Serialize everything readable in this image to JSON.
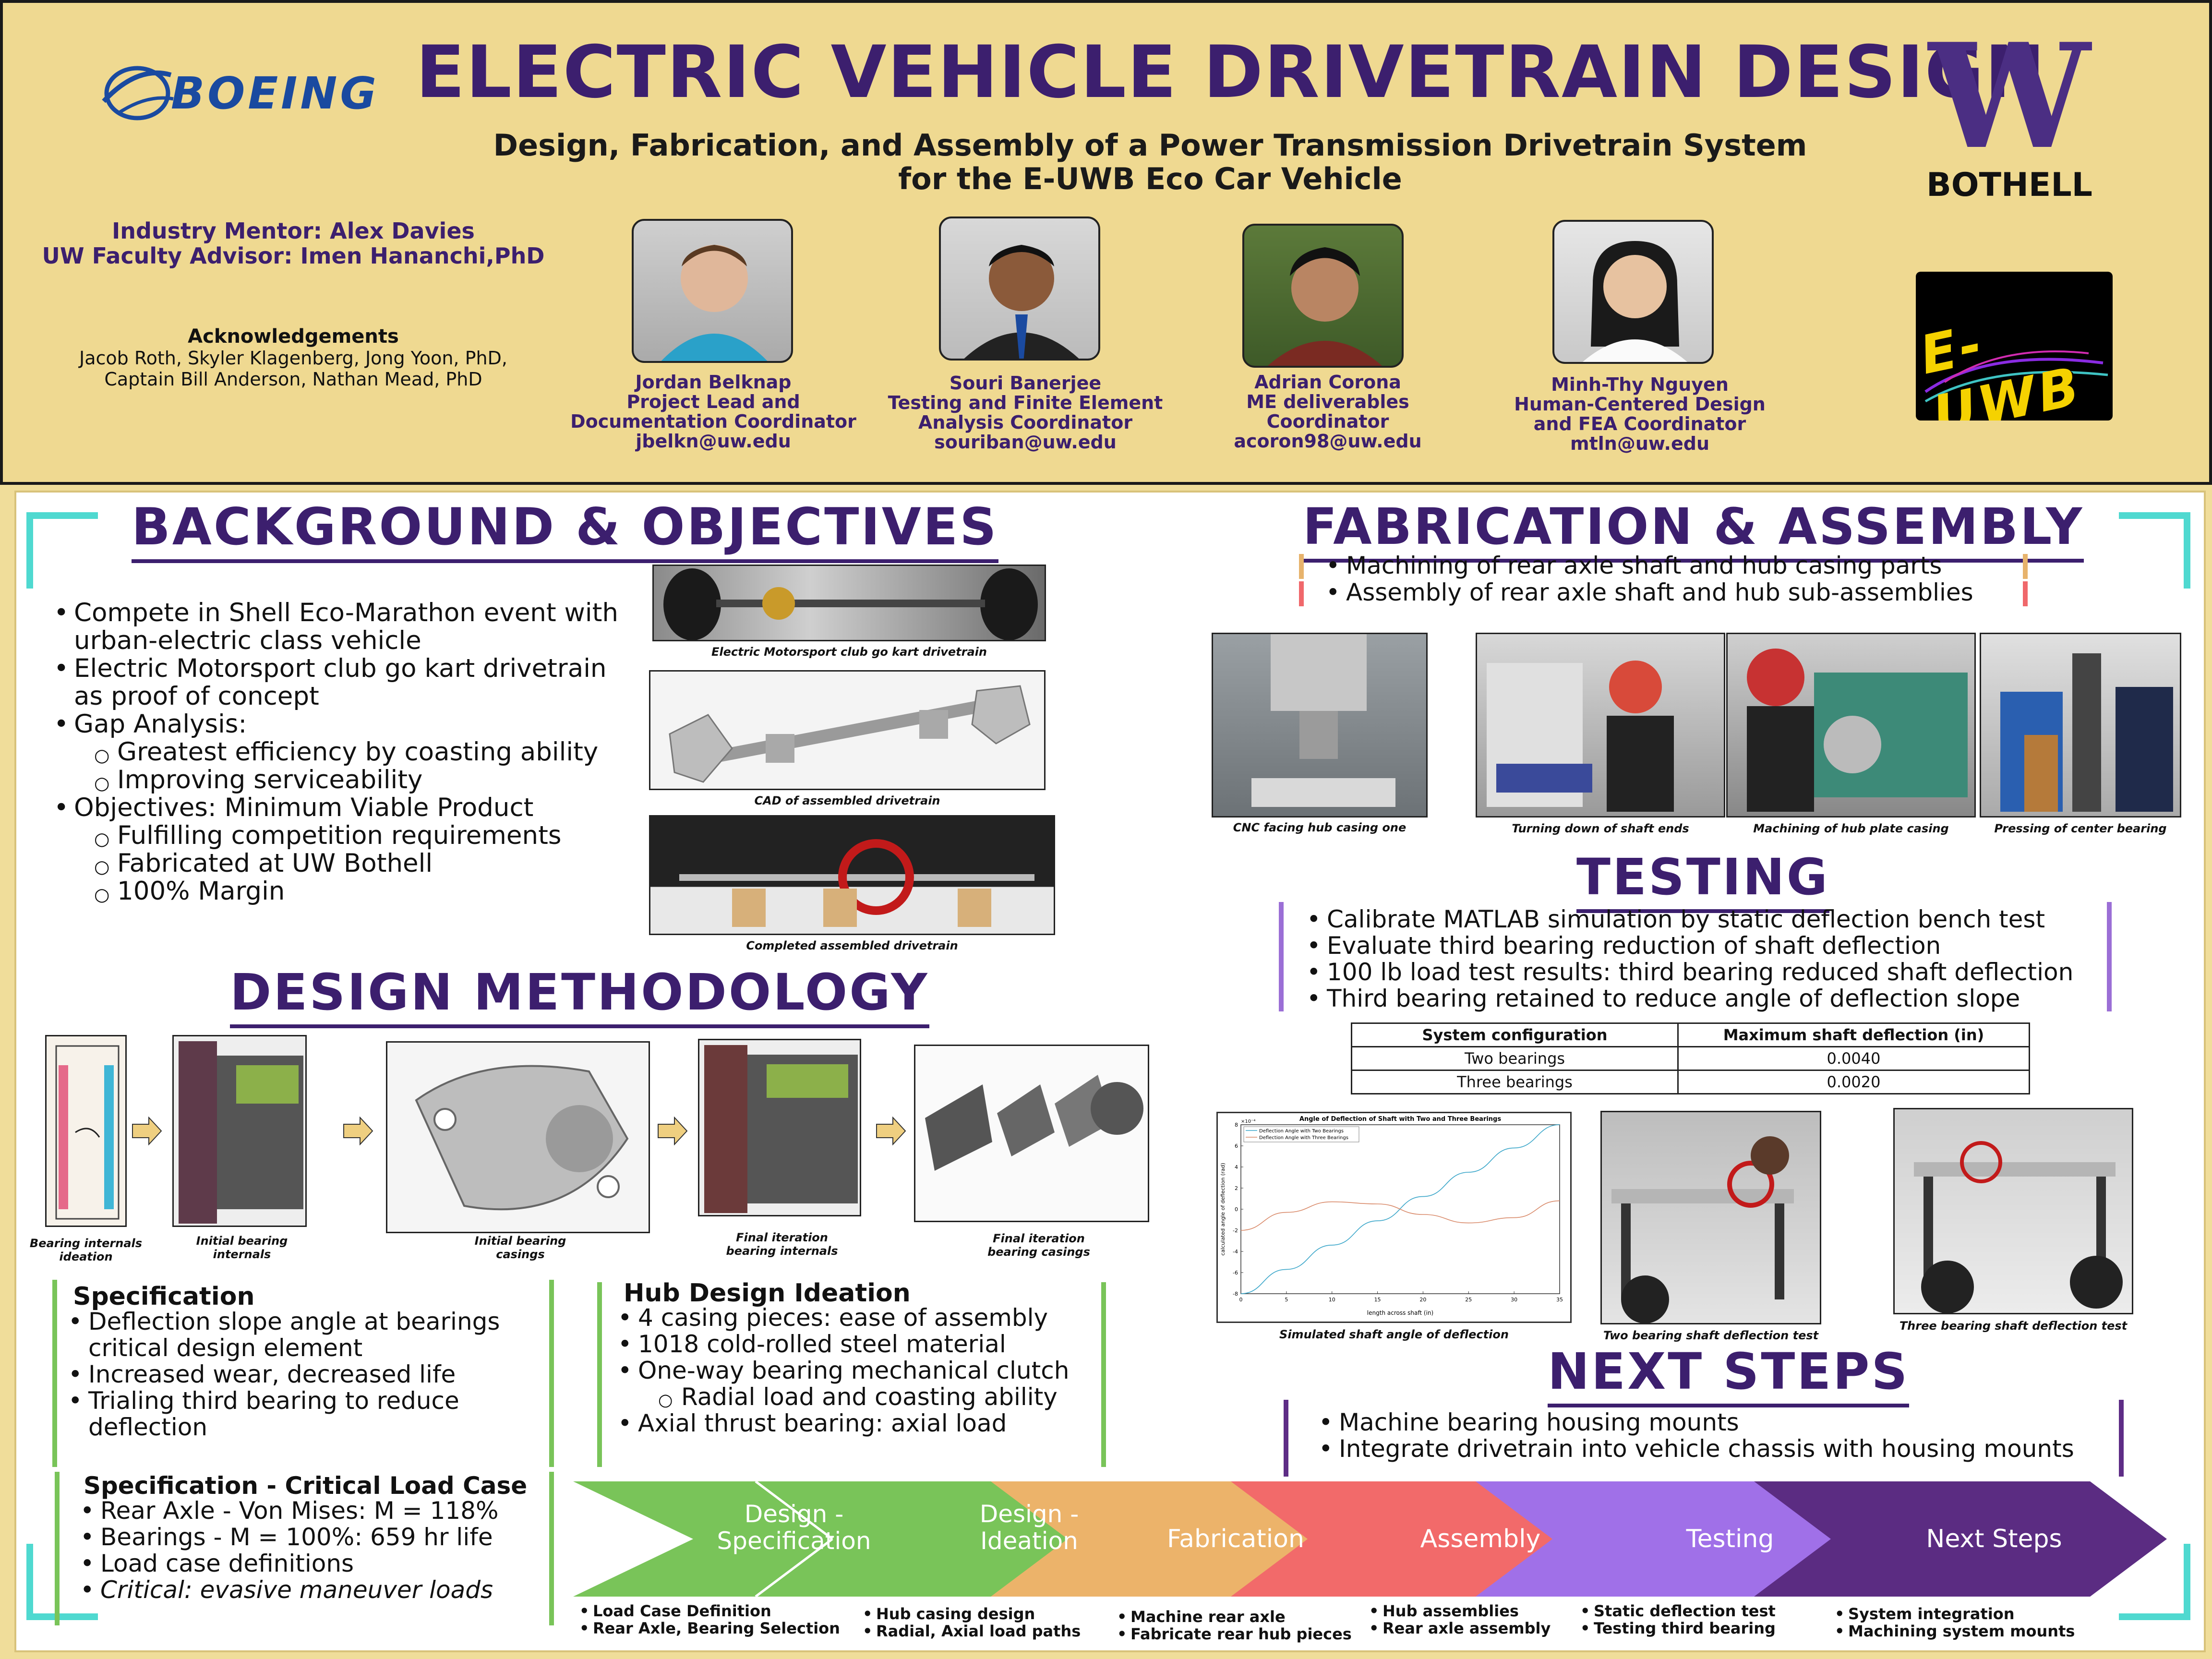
{
  "header": {
    "logo_left": "BOEING",
    "title": "ELECTRIC VEHICLE DRIVETRAIN DESIGN",
    "subtitle_line1": "Design, Fabrication, and Assembly of a Power Transmission Drivetrain System",
    "subtitle_line2": "for the E-UWB Eco Car Vehicle",
    "logo_right_letter": "W",
    "logo_right_text": "BOTHELL",
    "mentor": "Industry Mentor: Alex Davies",
    "advisor": "UW Faculty Advisor: Imen Hananchi,PhD",
    "ack_title": "Acknowledgements",
    "ack_line1": "Jacob Roth, Skyler Klagenberg, Jong Yoon, PhD,",
    "ack_line2": "Captain Bill Anderson, Nathan Mead, PhD",
    "team": [
      {
        "l1": "Jordan Belknap",
        "l2": "Project Lead and",
        "l3": "Documentation Coordinator",
        "l4": "jbelkn@uw.edu"
      },
      {
        "l1": "Souri Banerjee",
        "l2": "Testing and Finite Element",
        "l3": "Analysis Coordinator",
        "l4": "souriban@uw.edu"
      },
      {
        "l1": "Adrian Corona",
        "l2": "ME deliverables",
        "l3": "Coordinator",
        "l4": "acoron98@uw.edu"
      },
      {
        "l1": "Minh-Thy Nguyen",
        "l2": "Human-Centered Design",
        "l3": "and FEA Coordinator",
        "l4": "mtln@uw.edu"
      }
    ],
    "euwb_logo": "E-UWB"
  },
  "background": {
    "heading": "BACKGROUND & OBJECTIVES",
    "items": [
      {
        "text": "Compete in Shell Eco-Marathon event with",
        "level": 0
      },
      {
        "text": "urban-electric class vehicle",
        "level": 2
      },
      {
        "text": "Electric Motorsport club go kart drivetrain",
        "level": 0
      },
      {
        "text": "as proof of concept",
        "level": 2
      },
      {
        "text": "Gap Analysis:",
        "level": 0
      },
      {
        "text": "Greatest efficiency by coasting ability",
        "level": 1
      },
      {
        "text": "Improving serviceability",
        "level": 1
      },
      {
        "text": "Objectives: Minimum Viable Product",
        "level": 0
      },
      {
        "text": "Fulfilling competition requirements",
        "level": 1
      },
      {
        "text": "Fabricated at UW Bothell",
        "level": 1
      },
      {
        "text": "100% Margin",
        "level": 1
      }
    ],
    "captions": [
      "Electric Motorsport club go kart drivetrain",
      "CAD of assembled drivetrain",
      "Completed assembled drivetrain"
    ]
  },
  "design": {
    "heading": "DESIGN METHODOLOGY",
    "captions": [
      [
        "Bearing internals",
        "ideation"
      ],
      [
        "Initial bearing",
        "internals"
      ],
      [
        "Initial bearing",
        "casings"
      ],
      [
        "Final iteration",
        "bearing internals"
      ],
      [
        "Final iteration",
        "bearing casings"
      ]
    ],
    "spec_title": "Specification",
    "spec_items": [
      "Deflection slope angle at bearings",
      "critical design element",
      "Increased wear, decreased life",
      "Trialing third bearing to reduce",
      "deflection"
    ],
    "hub_title": "Hub Design Ideation",
    "hub_items": [
      "4 casing pieces: ease of assembly",
      "1018 cold-rolled steel material",
      "One-way bearing mechanical clutch",
      "Radial load and coasting ability",
      "Axial thrust bearing: axial load"
    ],
    "crit_title": "Specification - Critical Load Case",
    "crit_items": [
      "Rear Axle - Von Mises: M = 118%",
      "Bearings - M = 100%: 659 hr life",
      "Load case definitions",
      "Critical: evasive maneuver loads"
    ]
  },
  "fabrication": {
    "heading": "FABRICATION & ASSEMBLY",
    "items": [
      "Machining of rear axle shaft and hub casing parts",
      "Assembly of rear axle shaft and hub sub-assemblies"
    ],
    "captions": [
      "CNC facing hub casing one",
      "Turning down of shaft ends",
      "Machining of hub plate casing",
      "Pressing of center bearing"
    ]
  },
  "testing": {
    "heading": "TESTING",
    "items": [
      "Calibrate MATLAB simulation by static deflection bench test",
      "Evaluate third bearing reduction of shaft deflection",
      "100 lb load test results: third bearing reduced shaft deflection",
      "Third bearing retained to reduce angle of deflection slope"
    ],
    "table": {
      "headers": [
        "System configuration",
        "Maximum shaft deflection (in)"
      ],
      "rows": [
        [
          "Two bearings",
          "0.0040"
        ],
        [
          "Three bearings",
          "0.0020"
        ]
      ]
    },
    "captions": [
      "Simulated shaft angle of deflection",
      "Two bearing shaft deflection test",
      "Three bearing shaft deflection test"
    ]
  },
  "next": {
    "heading": "NEXT STEPS",
    "items": [
      "Machine bearing housing mounts",
      "Integrate drivetrain into vehicle chassis with housing mounts"
    ]
  },
  "timeline": {
    "stages": [
      {
        "label1": "Design -",
        "label2": "Specification",
        "color": "#79c459",
        "b1": "Load Case Definition",
        "b2": "Rear Axle, Bearing Selection"
      },
      {
        "label1": "Design -",
        "label2": "Ideation",
        "color": "#79c459",
        "b1": "Hub casing design",
        "b2": "Radial, Axial load paths"
      },
      {
        "label1": "Fabrication",
        "label2": "",
        "color": "#ecb36a",
        "b1": "Machine rear axle",
        "b2": "Fabricate rear hub pieces"
      },
      {
        "label1": "Assembly",
        "label2": "",
        "color": "#f26a6a",
        "b1": "Hub assemblies",
        "b2": "Rear axle assembly"
      },
      {
        "label1": "Testing",
        "label2": "",
        "color": "#a070e8",
        "b1": "Static deflection test",
        "b2": "Testing third bearing"
      },
      {
        "label1": "Next Steps",
        "label2": "",
        "color": "#5b2c82",
        "b1": "System integration",
        "b2": "Machining system mounts"
      }
    ]
  },
  "chart_data": {
    "type": "line",
    "title": "Angle of Deflection of Shaft with Two and Three Bearings",
    "xlabel": "length across shaft (in)",
    "ylabel": "calculated angle of deflection (rad)",
    "y_exponent_label": "×10⁻⁴",
    "xlim": [
      0,
      35
    ],
    "ylim": [
      -8,
      8
    ],
    "xticks": [
      0,
      5,
      10,
      15,
      20,
      25,
      30,
      35
    ],
    "yticks": [
      -8,
      -6,
      -4,
      -2,
      0,
      2,
      4,
      6,
      8
    ],
    "legend": "top-left",
    "series": [
      {
        "name": "Deflection Angle with Two Bearings",
        "color": "#3aa6c9",
        "x": [
          0,
          5,
          10,
          15,
          20,
          25,
          30,
          35
        ],
        "values": [
          -8.0,
          -5.7,
          -3.4,
          -1.1,
          1.2,
          3.5,
          5.8,
          8.0
        ]
      },
      {
        "name": "Deflection Angle with Three Bearings",
        "color": "#d98a6a",
        "x": [
          0,
          5,
          10,
          15,
          20,
          25,
          30,
          35
        ],
        "values": [
          -2.0,
          -0.3,
          0.7,
          0.5,
          -0.5,
          -1.3,
          -0.8,
          0.8
        ]
      }
    ]
  }
}
